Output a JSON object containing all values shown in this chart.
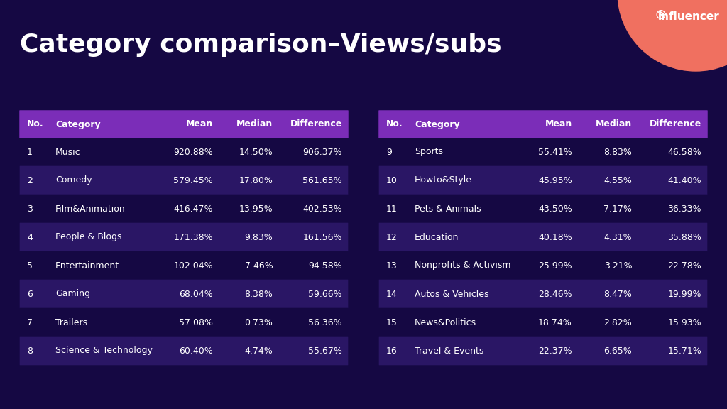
{
  "title": "Category comparison–Views/subs",
  "background_color": "#150843",
  "table_header_color": "#7b2db8",
  "table_row_even_color": "#2a1665",
  "table_row_odd_color": "#150843",
  "table_text_color": "#ffffff",
  "header_text_color": "#ffffff",
  "title_color": "#ffffff",
  "left_table": {
    "headers": [
      "No.",
      "Category",
      "Mean",
      "Median",
      "Difference"
    ],
    "rows": [
      [
        "1",
        "Music",
        "920.88%",
        "14.50%",
        "906.37%"
      ],
      [
        "2",
        "Comedy",
        "579.45%",
        "17.80%",
        "561.65%"
      ],
      [
        "3",
        "Film&Animation",
        "416.47%",
        "13.95%",
        "402.53%"
      ],
      [
        "4",
        "People & Blogs",
        "171.38%",
        "9.83%",
        "161.56%"
      ],
      [
        "5",
        "Entertainment",
        "102.04%",
        "7.46%",
        "94.58%"
      ],
      [
        "6",
        "Gaming",
        "68.04%",
        "8.38%",
        "59.66%"
      ],
      [
        "7",
        "Trailers",
        "57.08%",
        "0.73%",
        "56.36%"
      ],
      [
        "8",
        "Science & Technology",
        "60.40%",
        "4.74%",
        "55.67%"
      ]
    ]
  },
  "right_table": {
    "headers": [
      "No.",
      "Category",
      "Mean",
      "Median",
      "Difference"
    ],
    "rows": [
      [
        "9",
        "Sports",
        "55.41%",
        "8.83%",
        "46.58%"
      ],
      [
        "10",
        "Howto&Style",
        "45.95%",
        "4.55%",
        "41.40%"
      ],
      [
        "11",
        "Pets & Animals",
        "43.50%",
        "7.17%",
        "36.33%"
      ],
      [
        "12",
        "Education",
        "40.18%",
        "4.31%",
        "35.88%"
      ],
      [
        "13",
        "Nonprofits & Activism",
        "25.99%",
        "3.21%",
        "22.78%"
      ],
      [
        "14",
        "Autos & Vehicles",
        "28.46%",
        "8.47%",
        "19.99%"
      ],
      [
        "15",
        "News&Politics",
        "18.74%",
        "2.82%",
        "15.93%"
      ],
      [
        "16",
        "Travel & Events",
        "22.37%",
        "6.65%",
        "15.71%"
      ]
    ]
  },
  "logo_circle_color": "#f07060",
  "col_ratios": [
    0.09,
    0.32,
    0.22,
    0.19,
    0.22
  ]
}
